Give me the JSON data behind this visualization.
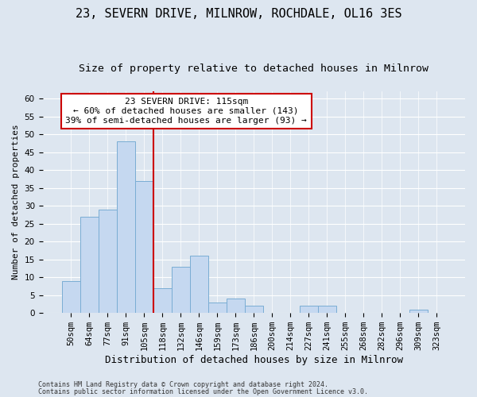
{
  "title1": "23, SEVERN DRIVE, MILNROW, ROCHDALE, OL16 3ES",
  "title2": "Size of property relative to detached houses in Milnrow",
  "xlabel": "Distribution of detached houses by size in Milnrow",
  "ylabel": "Number of detached properties",
  "categories": [
    "50sqm",
    "64sqm",
    "77sqm",
    "91sqm",
    "105sqm",
    "118sqm",
    "132sqm",
    "146sqm",
    "159sqm",
    "173sqm",
    "186sqm",
    "200sqm",
    "214sqm",
    "227sqm",
    "241sqm",
    "255sqm",
    "268sqm",
    "282sqm",
    "296sqm",
    "309sqm",
    "323sqm"
  ],
  "values": [
    9,
    27,
    29,
    48,
    37,
    7,
    13,
    16,
    3,
    4,
    2,
    0,
    0,
    2,
    2,
    0,
    0,
    0,
    0,
    1,
    0
  ],
  "bar_color": "#c5d8f0",
  "bar_edge_color": "#7aadd4",
  "vline_color": "#cc0000",
  "annotation_title": "23 SEVERN DRIVE: 115sqm",
  "annotation_line1": "← 60% of detached houses are smaller (143)",
  "annotation_line2": "39% of semi-detached houses are larger (93) →",
  "annotation_box_color": "#ffffff",
  "annotation_box_edge": "#cc0000",
  "ylim": [
    0,
    62
  ],
  "yticks": [
    0,
    5,
    10,
    15,
    20,
    25,
    30,
    35,
    40,
    45,
    50,
    55,
    60
  ],
  "bg_color": "#dde6f0",
  "plot_bg_color": "#dde6f0",
  "footer1": "Contains HM Land Registry data © Crown copyright and database right 2024.",
  "footer2": "Contains public sector information licensed under the Open Government Licence v3.0.",
  "title1_fontsize": 11,
  "title2_fontsize": 9.5,
  "xlabel_fontsize": 9,
  "ylabel_fontsize": 8,
  "tick_fontsize": 7.5,
  "annotation_fontsize": 8,
  "footer_fontsize": 6
}
